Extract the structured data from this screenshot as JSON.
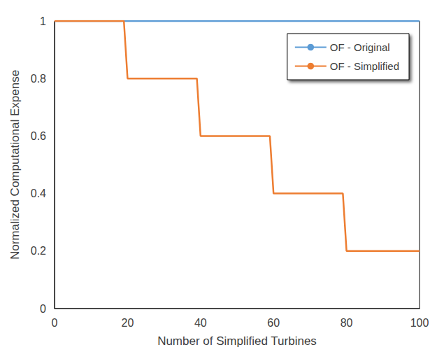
{
  "chart_data": {
    "type": "line",
    "x_label": "Number of Simplified Turbines",
    "y_label": "Normalized Computational Expense",
    "x": [
      0,
      19,
      20,
      39,
      40,
      59,
      60,
      79,
      80,
      100
    ],
    "series": [
      {
        "name": "OF - Original",
        "color": "#5b9bd5",
        "values": [
          1,
          1,
          1,
          1,
          1,
          1,
          1,
          1,
          1,
          1
        ]
      },
      {
        "name": "OF - Simplified",
        "color": "#ed7d31",
        "values": [
          1,
          1,
          0.8,
          0.8,
          0.6,
          0.6,
          0.4,
          0.4,
          0.2,
          0.2
        ]
      }
    ],
    "xlim": [
      0,
      100
    ],
    "xticks": [
      0,
      20,
      40,
      60,
      80,
      100
    ],
    "ylim": [
      0,
      1
    ],
    "yticks": [
      0,
      0.2,
      0.4,
      0.6,
      0.8,
      1
    ],
    "grid": false,
    "legend": "upper right"
  }
}
